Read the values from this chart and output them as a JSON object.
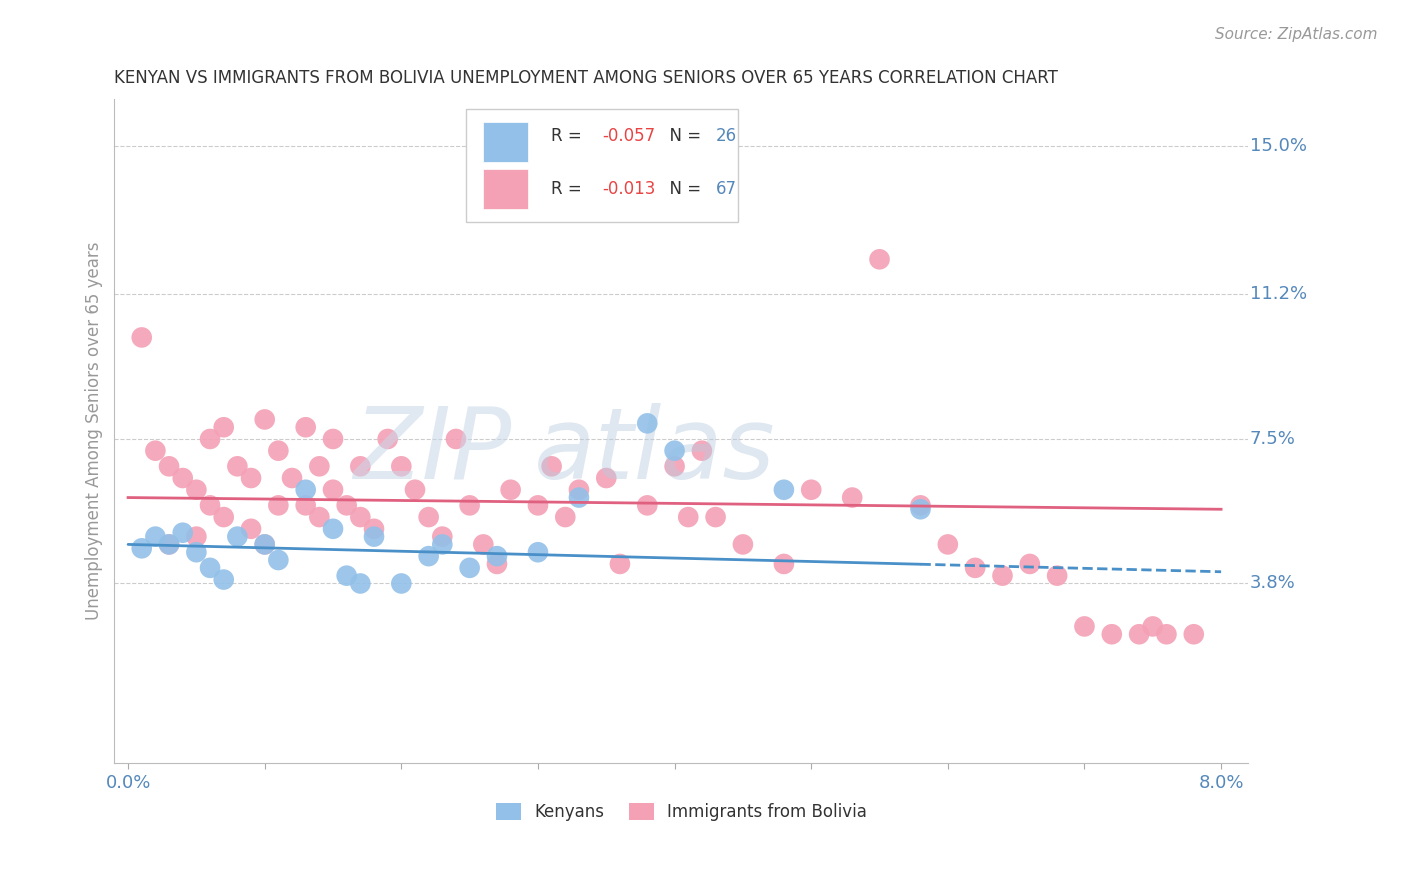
{
  "title": "KENYAN VS IMMIGRANTS FROM BOLIVIA UNEMPLOYMENT AMONG SENIORS OVER 65 YEARS CORRELATION CHART",
  "source": "Source: ZipAtlas.com",
  "ylabel": "Unemployment Among Seniors over 65 years",
  "xlim": [
    0.0,
    0.08
  ],
  "ylim": [
    0.0,
    0.158
  ],
  "right_yticks": [
    0.15,
    0.112,
    0.075,
    0.038
  ],
  "right_yticklabels": [
    "15.0%",
    "11.2%",
    "7.5%",
    "3.8%"
  ],
  "kenyan_color": "#92C0E8",
  "bolivia_color": "#F4A0B5",
  "kenyan_line_color": "#4A90C8",
  "bolivia_line_color": "#E06080",
  "kenyan_R": -0.057,
  "kenyan_N": 26,
  "bolivia_R": -0.013,
  "bolivia_N": 67,
  "kenyan_x": [
    0.001,
    0.002,
    0.003,
    0.004,
    0.005,
    0.006,
    0.007,
    0.008,
    0.01,
    0.011,
    0.013,
    0.015,
    0.016,
    0.017,
    0.018,
    0.02,
    0.022,
    0.023,
    0.025,
    0.027,
    0.03,
    0.033,
    0.038,
    0.04,
    0.048,
    0.058
  ],
  "kenyan_y": [
    0.047,
    0.05,
    0.048,
    0.051,
    0.046,
    0.042,
    0.039,
    0.05,
    0.048,
    0.044,
    0.062,
    0.052,
    0.04,
    0.038,
    0.05,
    0.038,
    0.045,
    0.048,
    0.042,
    0.045,
    0.046,
    0.06,
    0.079,
    0.072,
    0.062,
    0.057
  ],
  "bolivia_x": [
    0.001,
    0.002,
    0.003,
    0.003,
    0.004,
    0.005,
    0.005,
    0.006,
    0.006,
    0.007,
    0.007,
    0.008,
    0.009,
    0.009,
    0.01,
    0.01,
    0.011,
    0.011,
    0.012,
    0.013,
    0.013,
    0.014,
    0.014,
    0.015,
    0.015,
    0.016,
    0.017,
    0.017,
    0.018,
    0.019,
    0.02,
    0.021,
    0.022,
    0.023,
    0.024,
    0.025,
    0.026,
    0.027,
    0.028,
    0.03,
    0.031,
    0.032,
    0.033,
    0.035,
    0.036,
    0.038,
    0.04,
    0.041,
    0.042,
    0.043,
    0.045,
    0.048,
    0.05,
    0.053,
    0.055,
    0.058,
    0.06,
    0.062,
    0.064,
    0.066,
    0.068,
    0.07,
    0.072,
    0.074,
    0.075,
    0.076,
    0.078
  ],
  "bolivia_y": [
    0.101,
    0.072,
    0.048,
    0.068,
    0.065,
    0.062,
    0.05,
    0.075,
    0.058,
    0.078,
    0.055,
    0.068,
    0.065,
    0.052,
    0.08,
    0.048,
    0.072,
    0.058,
    0.065,
    0.078,
    0.058,
    0.068,
    0.055,
    0.075,
    0.062,
    0.058,
    0.068,
    0.055,
    0.052,
    0.075,
    0.068,
    0.062,
    0.055,
    0.05,
    0.075,
    0.058,
    0.048,
    0.043,
    0.062,
    0.058,
    0.068,
    0.055,
    0.062,
    0.065,
    0.043,
    0.058,
    0.068,
    0.055,
    0.072,
    0.055,
    0.048,
    0.043,
    0.062,
    0.06,
    0.121,
    0.058,
    0.048,
    0.042,
    0.04,
    0.043,
    0.04,
    0.027,
    0.025,
    0.025,
    0.027,
    0.025,
    0.025
  ],
  "background_color": "#FFFFFF",
  "grid_color": "#CCCCCC"
}
